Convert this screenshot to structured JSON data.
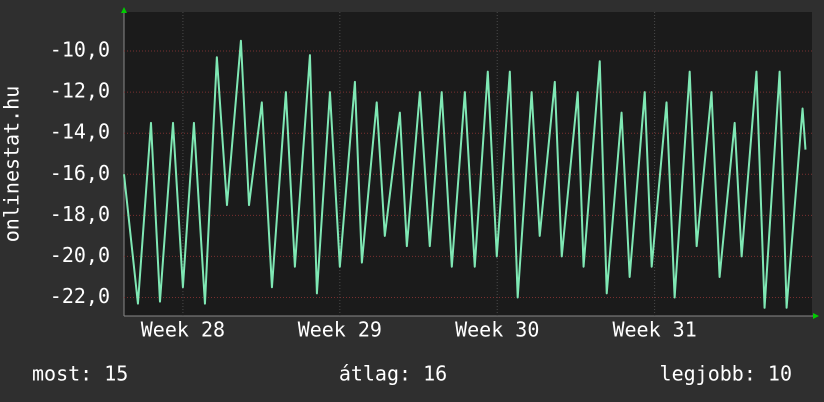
{
  "chart_data": {
    "type": "line",
    "y_label": "onlinestat.hu",
    "x": [
      0,
      0.62,
      1.2,
      1.6,
      2.18,
      2.62,
      3.11,
      3.6,
      4.13,
      4.58,
      5.2,
      5.56,
      6.13,
      6.58,
      7.2,
      7.6,
      8.27,
      8.58,
      9.16,
      9.6,
      10.27,
      10.58,
      11.24,
      11.6,
      12.27,
      12.58,
      13.16,
      13.6,
      14.13,
      14.58,
      15.16,
      15.6,
      16.18,
      16.58,
      17.16,
      17.51,
      18.13,
      18.49,
      19.16,
      19.47,
      20.18,
      20.44,
      21.16,
      21.47,
      22.13,
      22.49,
      23.16,
      23.47,
      24.13,
      24.49,
      25.16,
      25.47,
      26.13,
      26.49,
      27.16,
      27.47,
      28.13,
      28.49,
      29.16,
      29.47,
      30.18,
      30.31
    ],
    "series": [
      {
        "color": "#7fe8b4",
        "values": [
          -16,
          -22.3,
          -13.5,
          -22.2,
          -13.5,
          -21.5,
          -13.5,
          -22.3,
          -10.3,
          -17.5,
          -9.5,
          -17.5,
          -12.5,
          -21.5,
          -12,
          -20.5,
          -10.2,
          -21.8,
          -12,
          -20.5,
          -11.5,
          -20.3,
          -12.5,
          -19,
          -13,
          -19.5,
          -12,
          -19.5,
          -12,
          -20.5,
          -12,
          -20.5,
          -11,
          -20,
          -11,
          -22,
          -12,
          -19,
          -11.5,
          -20,
          -12,
          -20.5,
          -10.5,
          -21.8,
          -13,
          -21,
          -12,
          -20.5,
          -12.5,
          -22,
          -11,
          -19.5,
          -12,
          -21,
          -13.5,
          -20,
          -11,
          -22.5,
          -11,
          -22.5,
          -12.8,
          -14.8
        ]
      }
    ],
    "xlim": [
      0,
      30.6
    ],
    "xticks": [
      {
        "value": 2.62,
        "label": "Week 28"
      },
      {
        "value": 9.6,
        "label": "Week 29"
      },
      {
        "value": 16.6,
        "label": "Week 30"
      },
      {
        "value": 23.6,
        "label": "Week 31"
      }
    ],
    "ylim": [
      -22.9,
      -8.1
    ],
    "yticks": [
      {
        "value": -22,
        "label": "-22,0"
      },
      {
        "value": -20,
        "label": "-20,0"
      },
      {
        "value": -18,
        "label": "-18,0"
      },
      {
        "value": -16,
        "label": "-16,0"
      },
      {
        "value": -14,
        "label": "-14,0"
      },
      {
        "value": -12,
        "label": "-12,0"
      },
      {
        "value": -10,
        "label": "-10,0"
      }
    ],
    "grid": true,
    "stats": [
      "most: 15",
      "átlag: 16",
      "legjobb: 10"
    ]
  }
}
